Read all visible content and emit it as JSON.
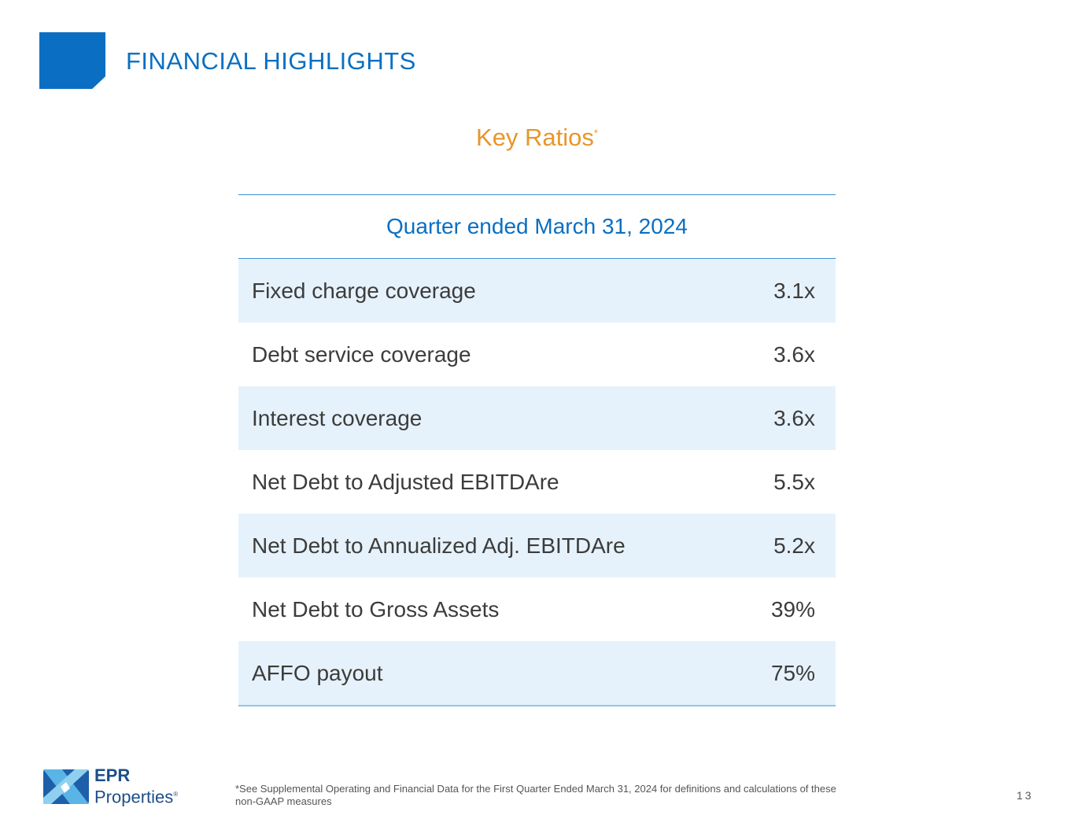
{
  "header": {
    "title": "FINANCIAL HIGHLIGHTS"
  },
  "subtitle": {
    "text": "Key Ratios",
    "mark": "*"
  },
  "table": {
    "heading": "Quarter ended March 31, 2024",
    "rows": [
      {
        "label": "Fixed charge coverage",
        "value": "3.1x"
      },
      {
        "label": "Debt service coverage",
        "value": "3.6x"
      },
      {
        "label": "Interest coverage",
        "value": "3.6x"
      },
      {
        "label": "Net Debt to Adjusted EBITDAre",
        "value": "5.5x"
      },
      {
        "label": "Net Debt to Annualized Adj. EBITDAre",
        "value": "5.2x"
      },
      {
        "label": "Net Debt to Gross Assets",
        "value": "39%"
      },
      {
        "label": "AFFO payout",
        "value": "75%"
      }
    ]
  },
  "logo": {
    "line1": "EPR",
    "line2": "Properties"
  },
  "footnote": "*See Supplemental Operating and Financial Data for the First Quarter Ended March 31, 2024 for definitions and calculations of these non-GAAP measures",
  "page_number": "13"
}
